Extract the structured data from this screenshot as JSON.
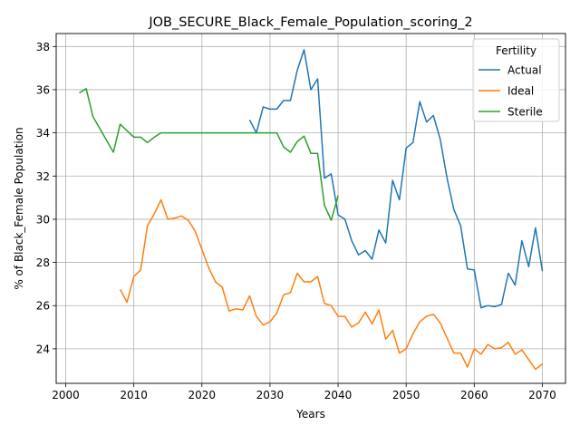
{
  "chart_data": {
    "type": "line",
    "title": "JOB_SECURE_Black_Female_Population_scoring_2",
    "xlabel": "Years",
    "ylabel": "% of Black_Female Population",
    "xlim": [
      1998.6,
      2073.4
    ],
    "ylim": [
      22.4,
      38.6
    ],
    "xticks": [
      2000,
      2010,
      2020,
      2030,
      2040,
      2050,
      2060,
      2070
    ],
    "yticks": [
      24,
      26,
      28,
      30,
      32,
      34,
      36,
      38
    ],
    "grid": true,
    "legend": {
      "title": "Fertility",
      "placement": "top-right"
    },
    "series": [
      {
        "name": "Actual",
        "color": "#1f77b4",
        "x": [
          2027,
          2028,
          2029,
          2030,
          2031,
          2032,
          2033,
          2034,
          2035,
          2036,
          2037,
          2038,
          2039,
          2040,
          2041,
          2042,
          2043,
          2044,
          2045,
          2046,
          2047,
          2048,
          2049,
          2050,
          2051,
          2052,
          2053,
          2054,
          2055,
          2056,
          2057,
          2058,
          2059,
          2060,
          2061,
          2062,
          2063,
          2064,
          2065,
          2066,
          2067,
          2068,
          2069,
          2070
        ],
        "values": [
          34.6,
          34.0,
          35.2,
          35.1,
          35.1,
          35.5,
          35.5,
          36.9,
          37.85,
          36.0,
          36.5,
          31.9,
          32.1,
          30.2,
          30.0,
          29.0,
          28.35,
          28.55,
          28.15,
          29.5,
          28.9,
          31.8,
          30.9,
          33.3,
          33.55,
          35.45,
          34.5,
          34.8,
          33.7,
          31.9,
          30.45,
          29.7,
          27.7,
          27.65,
          25.9,
          26.0,
          25.95,
          26.05,
          27.5,
          26.95,
          29.0,
          27.8,
          29.6,
          27.6
        ]
      },
      {
        "name": "Ideal",
        "color": "#ff7f0e",
        "x": [
          2008,
          2009,
          2010,
          2011,
          2012,
          2013,
          2014,
          2015,
          2016,
          2017,
          2018,
          2019,
          2020,
          2021,
          2022,
          2023,
          2024,
          2025,
          2026,
          2027,
          2028,
          2029,
          2030,
          2031,
          2032,
          2033,
          2034,
          2035,
          2036,
          2037,
          2038,
          2039,
          2040,
          2041,
          2042,
          2043,
          2044,
          2045,
          2046,
          2047,
          2048,
          2049,
          2050,
          2051,
          2052,
          2053,
          2054,
          2055,
          2056,
          2057,
          2058,
          2059,
          2060,
          2061,
          2062,
          2063,
          2064,
          2065,
          2066,
          2067,
          2068,
          2069,
          2070
        ],
        "values": [
          26.75,
          26.15,
          27.35,
          27.65,
          29.7,
          30.25,
          30.9,
          30.0,
          30.05,
          30.15,
          29.95,
          29.45,
          28.6,
          27.75,
          27.1,
          26.85,
          25.75,
          25.85,
          25.8,
          26.45,
          25.5,
          25.1,
          25.25,
          25.65,
          26.5,
          26.6,
          27.5,
          27.1,
          27.1,
          27.35,
          26.1,
          26.0,
          25.5,
          25.5,
          25.0,
          25.2,
          25.7,
          25.15,
          25.8,
          24.45,
          24.85,
          23.8,
          24.0,
          24.7,
          25.25,
          25.5,
          25.6,
          25.2,
          24.5,
          23.8,
          23.8,
          23.15,
          24.0,
          23.75,
          24.2,
          24.0,
          24.05,
          24.3,
          23.75,
          23.95,
          23.5,
          23.05,
          23.3
        ]
      },
      {
        "name": "Sterile",
        "color": "#2ca02c",
        "x": [
          2002,
          2003,
          2004,
          2005,
          2006,
          2007,
          2008,
          2009,
          2010,
          2011,
          2012,
          2013,
          2014,
          2015,
          2016,
          2017,
          2018,
          2019,
          2020,
          2021,
          2022,
          2023,
          2024,
          2025,
          2026,
          2027,
          2028,
          2029,
          2030,
          2031,
          2032,
          2033,
          2034,
          2035,
          2036,
          2037,
          2038,
          2039,
          2040
        ],
        "values": [
          35.85,
          36.05,
          34.75,
          34.2,
          33.65,
          33.1,
          34.4,
          34.1,
          33.8,
          33.8,
          33.55,
          33.8,
          34.0,
          34.0,
          34.0,
          34.0,
          34.0,
          34.0,
          34.0,
          34.0,
          34.0,
          34.0,
          34.0,
          34.0,
          34.0,
          34.0,
          34.0,
          34.0,
          34.0,
          34.0,
          33.35,
          33.1,
          33.6,
          33.85,
          33.05,
          33.05,
          30.65,
          29.95,
          31.1
        ]
      }
    ]
  }
}
